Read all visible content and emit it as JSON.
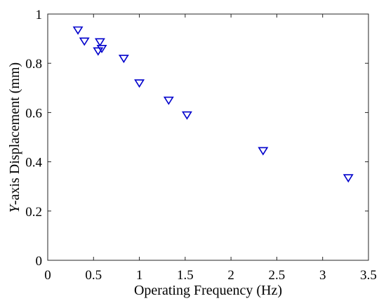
{
  "chart_data": {
    "type": "scatter",
    "xlabel": "Operating Frequency (Hz)",
    "ylabel_italic": "Y",
    "ylabel_rest": "-axis Displacement (mm)",
    "xlim": [
      0,
      3.5
    ],
    "ylim": [
      0,
      1
    ],
    "x_ticks": [
      0,
      0.5,
      1,
      1.5,
      2,
      2.5,
      3,
      3.5
    ],
    "x_tick_labels": [
      "0",
      "0.5",
      "1",
      "1.5",
      "2",
      "2.5",
      "3",
      "3.5"
    ],
    "y_ticks": [
      0,
      0.2,
      0.4,
      0.6,
      0.8,
      1
    ],
    "y_tick_labels": [
      "0",
      "0.2",
      "0.4",
      "0.6",
      "0.8",
      "1"
    ],
    "grid": false,
    "marker": "downward-triangle",
    "marker_color": "#0000cc",
    "series": [
      {
        "points": [
          {
            "x": 0.33,
            "y": 0.935
          },
          {
            "x": 0.4,
            "y": 0.89
          },
          {
            "x": 0.55,
            "y": 0.85
          },
          {
            "x": 0.57,
            "y": 0.887
          },
          {
            "x": 0.59,
            "y": 0.86
          },
          {
            "x": 0.83,
            "y": 0.82
          },
          {
            "x": 1.0,
            "y": 0.72
          },
          {
            "x": 1.32,
            "y": 0.65
          },
          {
            "x": 1.52,
            "y": 0.59
          },
          {
            "x": 2.35,
            "y": 0.445
          },
          {
            "x": 3.28,
            "y": 0.335
          }
        ]
      }
    ]
  }
}
